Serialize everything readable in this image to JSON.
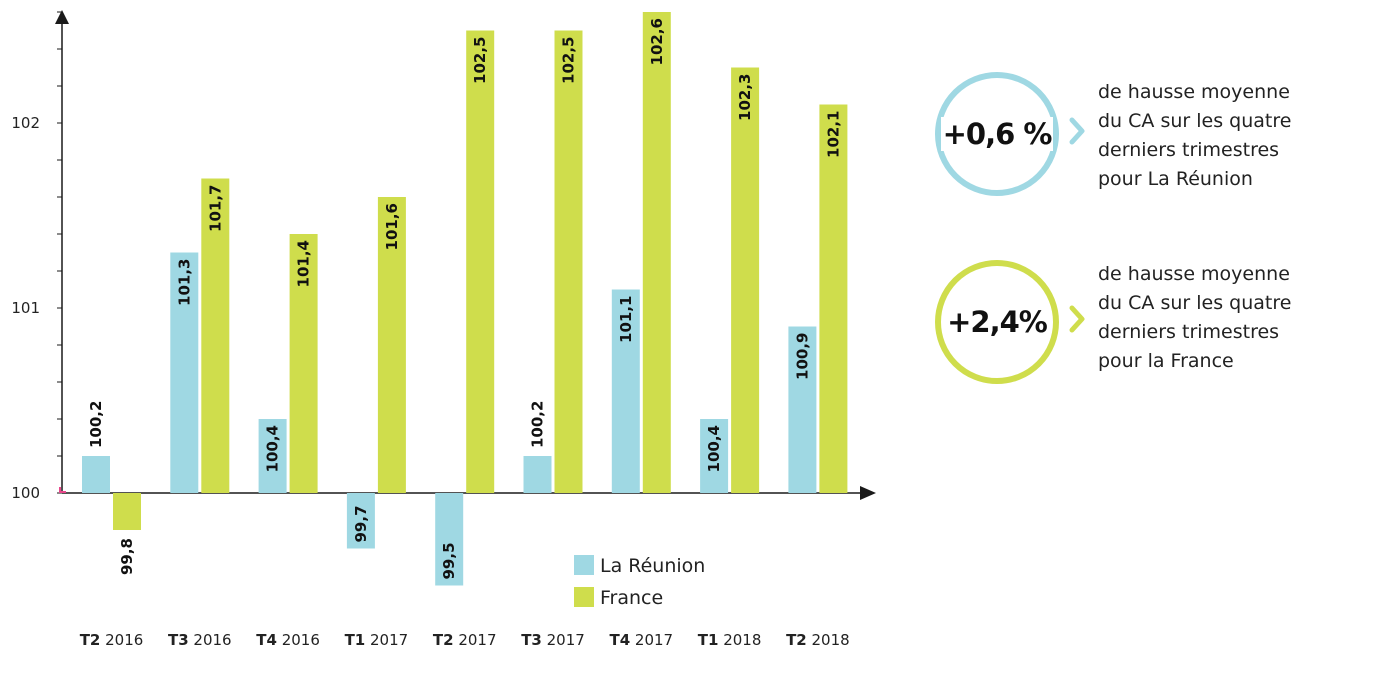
{
  "chart_data": {
    "type": "bar",
    "categories": [
      {
        "q": "T2",
        "y": "2016"
      },
      {
        "q": "T3",
        "y": "2016"
      },
      {
        "q": "T4",
        "y": "2016"
      },
      {
        "q": "T1",
        "y": "2017"
      },
      {
        "q": "T2",
        "y": "2017"
      },
      {
        "q": "T3",
        "y": "2017"
      },
      {
        "q": "T4",
        "y": "2017"
      },
      {
        "q": "T1",
        "y": "2018"
      },
      {
        "q": "T2",
        "y": "2018"
      }
    ],
    "series": [
      {
        "name": "La Réunion",
        "color": "#9fd8e3",
        "values": [
          100.2,
          101.3,
          100.4,
          99.7,
          99.5,
          100.2,
          101.1,
          100.4,
          100.9
        ],
        "labels": [
          "100,2",
          "101,3",
          "100,4",
          "99,7",
          "99,5",
          "100,2",
          "101,1",
          "100,4",
          "100,9"
        ]
      },
      {
        "name": "France",
        "color": "#cfdd4c",
        "values": [
          99.8,
          101.7,
          101.4,
          101.6,
          102.5,
          102.5,
          102.6,
          102.3,
          102.1
        ],
        "labels": [
          "99,8",
          "101,7",
          "101,4",
          "101,6",
          "102,5",
          "102,5",
          "102,6",
          "102,3",
          "102,1"
        ]
      }
    ],
    "yticks": [
      {
        "value": 100,
        "label": "100"
      },
      {
        "value": 101,
        "label": "101"
      },
      {
        "value": 102,
        "label": "102"
      }
    ],
    "baseline": 100,
    "ylim": [
      99.5,
      102.6
    ],
    "legend_position": "bottom-right",
    "axis_color": "#1a1a1a",
    "origin_mark_color": "#e8478b"
  },
  "stats": [
    {
      "value": "+0,6 %",
      "text": " de hausse moyenne\ndu CA sur les quatre\nderniers trimestres\npour La Réunion",
      "color": "#9fd8e3"
    },
    {
      "value": "+2,4%",
      "text": "de hausse moyenne\ndu CA sur les quatre\nderniers trimestres\npour la France",
      "color": "#cfdd4c"
    }
  ]
}
